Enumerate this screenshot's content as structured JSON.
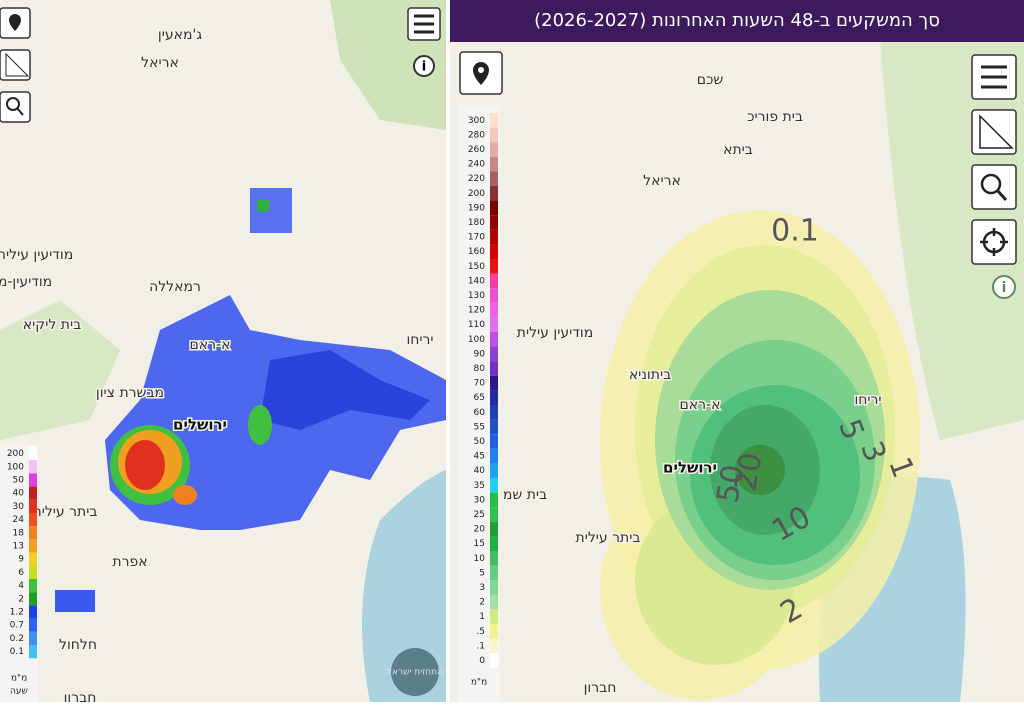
{
  "left": {
    "places": [
      "ג'מאעין",
      "אריאל",
      "מודיעין עילית",
      "מודיעין-מ",
      "רמאללה",
      "בית ליקיא",
      "א-ראם",
      "יריחו",
      "מבשרת ציון",
      "ירושלים",
      "ביתר עילית",
      "אפרת",
      "חלחול",
      "חברון"
    ],
    "legend": {
      "labels": [
        "200",
        "100",
        "50",
        "40",
        "30",
        "24",
        "18",
        "13",
        "9",
        "6",
        "4",
        "2",
        "1.2",
        "0.7",
        "0.2",
        "0.1"
      ],
      "unit": "מ\"מ",
      "unit2": "שעה"
    },
    "logo": "התחזית ישראל"
  },
  "right": {
    "title": "סך המשקעים ב-48 השעות האחרונות (2026-2027)",
    "places": [
      "שכם",
      "בית פוריכ",
      "ביתא",
      "אריאל",
      "מודיעין עילית",
      "ביתוניא",
      "א-ראם",
      "יריחו",
      "ירושלים",
      "בית שמ",
      "ביתר עילית",
      "חברון"
    ],
    "contours": [
      "0.1",
      "5",
      "3",
      "1",
      "20",
      "50",
      "10",
      "2"
    ],
    "legend": {
      "labels": [
        "300",
        "280",
        "260",
        "240",
        "220",
        "200",
        "190",
        "180",
        "170",
        "160",
        "150",
        "140",
        "130",
        "120",
        "110",
        "100",
        "90",
        "80",
        "70",
        "65",
        "60",
        "55",
        "50",
        "45",
        "40",
        "35",
        "30",
        "25",
        "20",
        "15",
        "10",
        "5",
        "3",
        "2",
        "1",
        ".5",
        ".1",
        "0"
      ],
      "unit": "מ\"מ"
    }
  }
}
